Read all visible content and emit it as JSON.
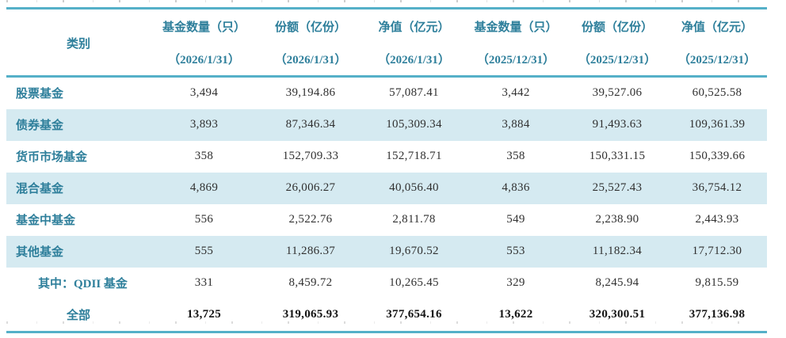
{
  "colors": {
    "rule_teal": "#55b0c8",
    "header_text": "#2e7f9b",
    "stripe_background": "#d5eaf1",
    "number_text": "#303030"
  },
  "table": {
    "category_header": "类别",
    "columns": [
      {
        "title": "基金数量（只）",
        "date": "（2026/1/31）"
      },
      {
        "title": "份额（亿份）",
        "date": "（2026/1/31）"
      },
      {
        "title": "净值（亿元）",
        "date": "（2026/1/31）"
      },
      {
        "title": "基金数量（只）",
        "date": "（2025/12/31）"
      },
      {
        "title": "份额（亿份）",
        "date": "（2025/12/31）"
      },
      {
        "title": "净值（亿元）",
        "date": "（2025/12/31）"
      }
    ],
    "rows": [
      {
        "category": "股票基金",
        "values": [
          "3,494",
          "39,194.86",
          "57,087.41",
          "3,442",
          "39,527.06",
          "60,525.58"
        ]
      },
      {
        "category": "债券基金",
        "values": [
          "3,893",
          "87,346.34",
          "105,309.34",
          "3,884",
          "91,493.63",
          "109,361.39"
        ]
      },
      {
        "category": "货币市场基金",
        "values": [
          "358",
          "152,709.33",
          "152,718.71",
          "358",
          "150,331.15",
          "150,339.66"
        ]
      },
      {
        "category": "混合基金",
        "values": [
          "4,869",
          "26,006.27",
          "40,056.40",
          "4,836",
          "25,527.43",
          "36,754.12"
        ]
      },
      {
        "category": "基金中基金",
        "values": [
          "556",
          "2,522.76",
          "2,811.78",
          "549",
          "2,238.90",
          "2,443.93"
        ]
      },
      {
        "category": "其他基金",
        "values": [
          "555",
          "11,286.37",
          "19,670.52",
          "553",
          "11,182.34",
          "17,712.30"
        ]
      },
      {
        "category": "其中：QDII 基金",
        "values": [
          "331",
          "8,459.72",
          "10,265.45",
          "329",
          "8,245.94",
          "9,815.59"
        ]
      },
      {
        "category": "全部",
        "values": [
          "13,725",
          "319,065.93",
          "377,654.16",
          "13,622",
          "320,300.51",
          "377,136.98"
        ]
      }
    ]
  }
}
